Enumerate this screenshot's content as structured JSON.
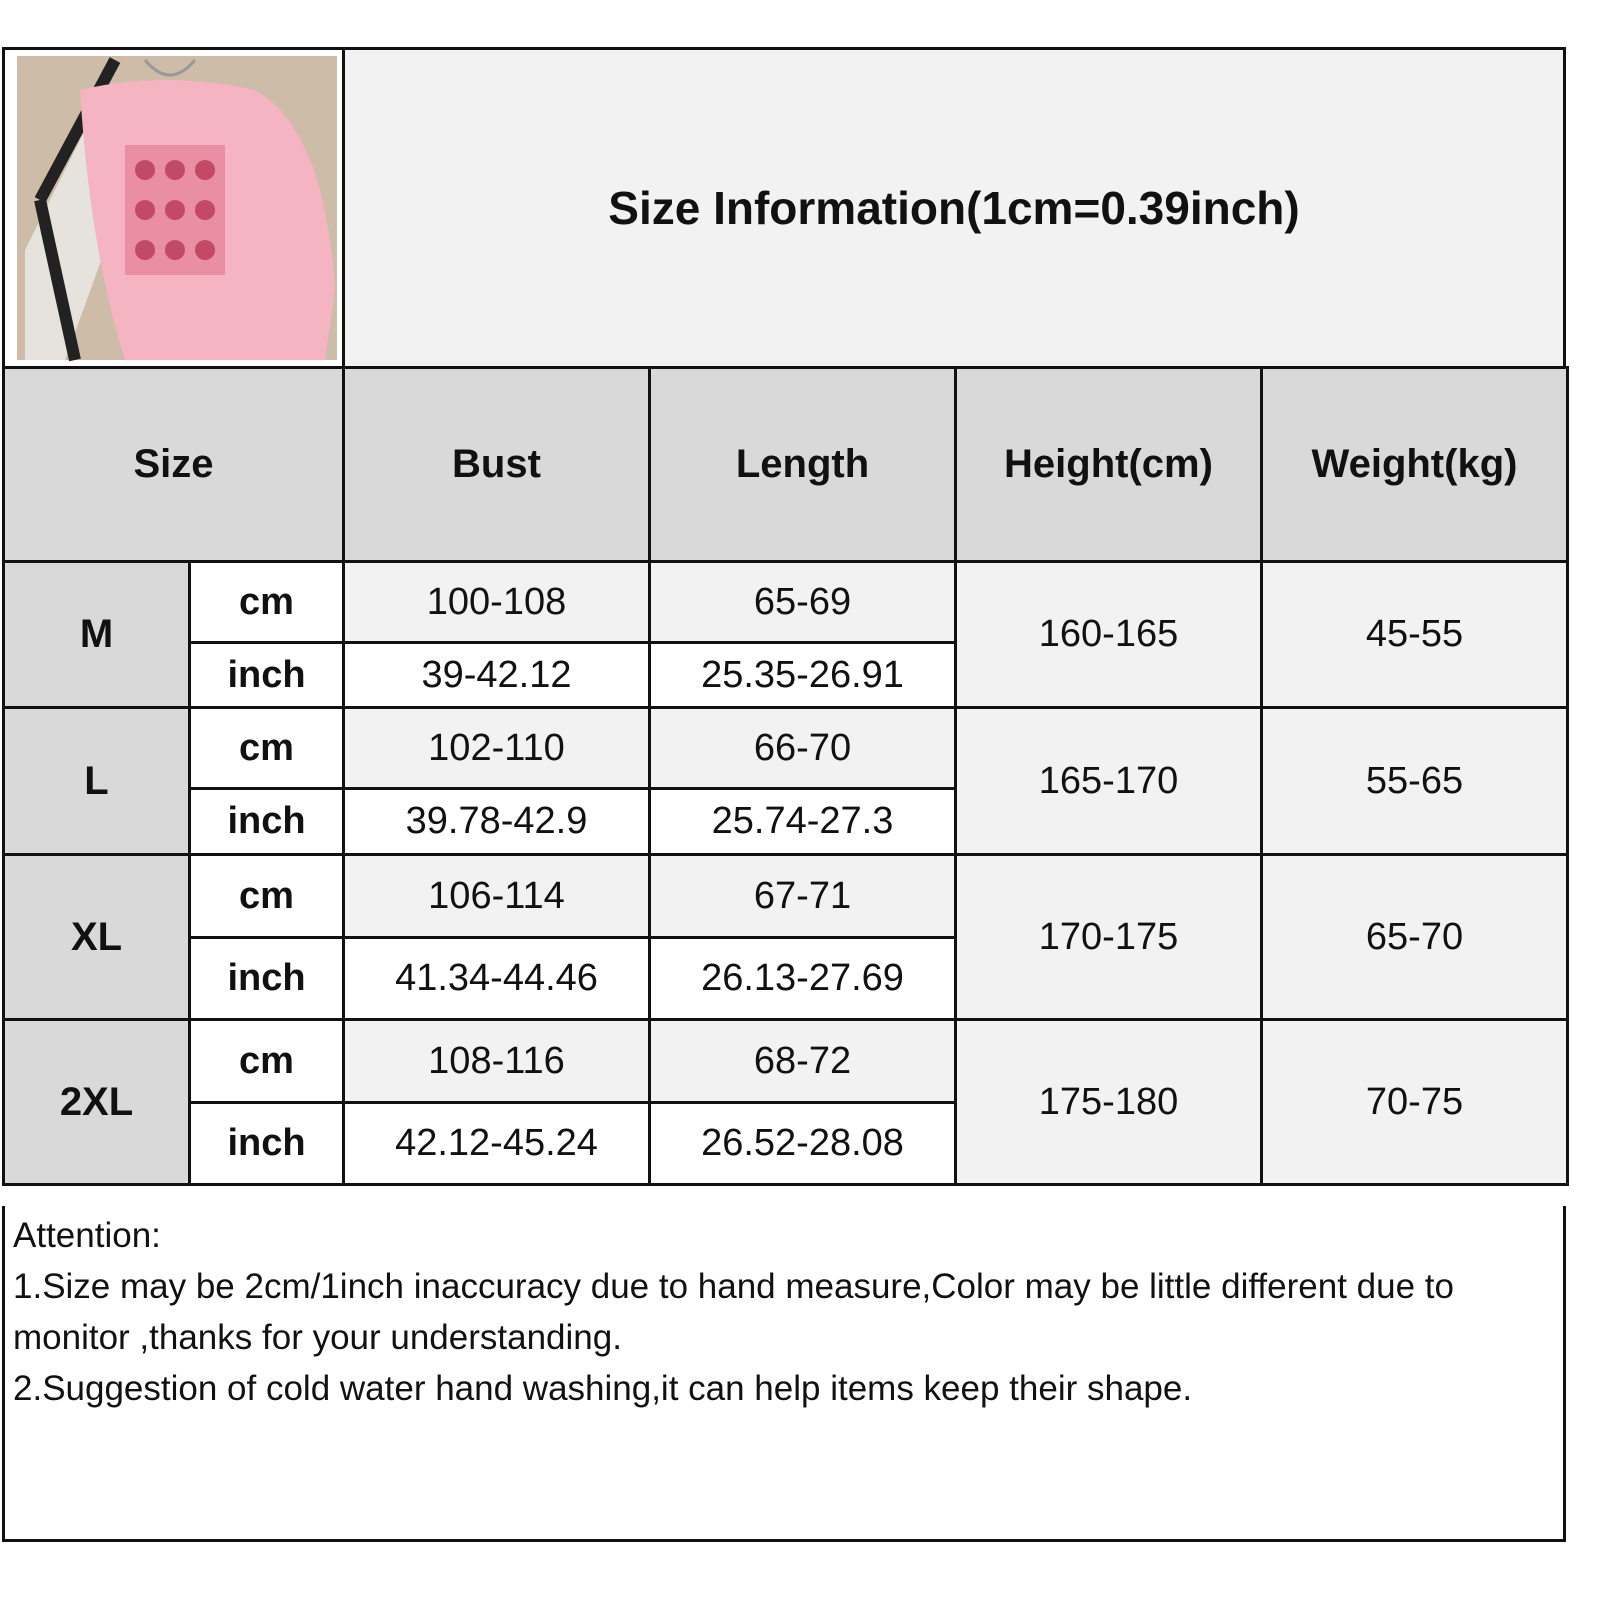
{
  "title": "Size Information(1cm=0.39inch)",
  "product_image": "pink-mickey-sweatshirt-photo",
  "headers": [
    "Size",
    "Bust",
    "Length",
    "Height(cm)",
    "Weight(kg)"
  ],
  "unit_labels": {
    "cm": "cm",
    "inch": "inch"
  },
  "rows": [
    {
      "size": "M",
      "bust_cm": "100-108",
      "length_cm": "65-69",
      "bust_inch": "39-42.12",
      "length_inch": "25.35-26.91",
      "height": "160-165",
      "weight": "45-55"
    },
    {
      "size": "L",
      "bust_cm": "102-110",
      "length_cm": "66-70",
      "bust_inch": "39.78-42.9",
      "length_inch": "25.74-27.3",
      "height": "165-170",
      "weight": "55-65"
    },
    {
      "size": "XL",
      "bust_cm": "106-114",
      "length_cm": "67-71",
      "bust_inch": "41.34-44.46",
      "length_inch": "26.13-27.69",
      "height": "170-175",
      "weight": "65-70"
    },
    {
      "size": "2XL",
      "bust_cm": "108-116",
      "length_cm": "68-72",
      "bust_inch": "42.12-45.24",
      "length_inch": "26.52-28.08",
      "height": "175-180",
      "weight": "70-75"
    }
  ],
  "attention": {
    "heading": "Attention:",
    "lines": [
      "1.Size may be 2cm/1inch inaccuracy due to hand measure,Color may be little different due to monitor ,thanks for your understanding.",
      "2.Suggestion of cold water hand washing,it can help items keep their shape."
    ]
  }
}
